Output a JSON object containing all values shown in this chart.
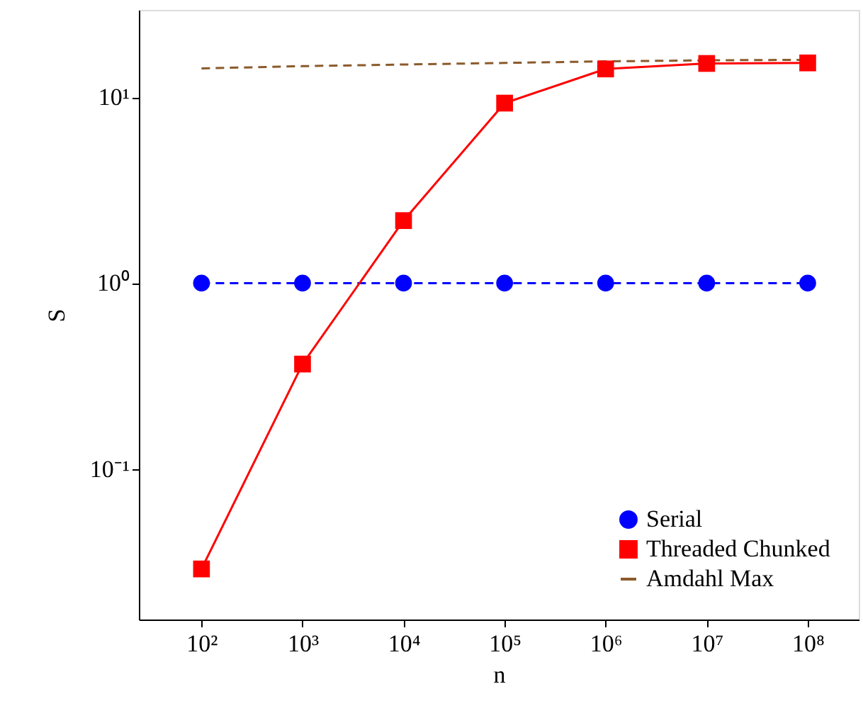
{
  "chart_data": {
    "type": "line",
    "xlabel": "n",
    "ylabel": "S",
    "log": "xy",
    "grid": false,
    "legend": "bottom right",
    "x": [
      100,
      1000,
      10000,
      100000,
      1000000,
      10000000,
      100000000
    ],
    "xlim": [
      24,
      320000000
    ],
    "ylim": [
      0.0155,
      29.5
    ],
    "xticks": [
      {
        "value": 100,
        "label": "10²"
      },
      {
        "value": 1000,
        "label": "10³"
      },
      {
        "value": 10000,
        "label": "10⁴"
      },
      {
        "value": 100000,
        "label": "10⁵"
      },
      {
        "value": 1000000,
        "label": "10⁶"
      },
      {
        "value": 10000000,
        "label": "10⁷"
      },
      {
        "value": 100000000,
        "label": "10⁸"
      }
    ],
    "yticks": [
      {
        "value": 0.1,
        "label": "10⁻¹"
      },
      {
        "value": 1,
        "label": "10⁰"
      },
      {
        "value": 10,
        "label": "10¹"
      }
    ],
    "series": [
      {
        "name": "Serial",
        "color": "#0000ff",
        "marker": "circle",
        "line_style": "dashed",
        "values": [
          1,
          1,
          1,
          1,
          1,
          1,
          1
        ]
      },
      {
        "name": "Threaded Chunked",
        "color": "#ff0000",
        "marker": "square",
        "line_style": "solid",
        "values": [
          0.029,
          0.367,
          2.17,
          9.3,
          14.2,
          15.2,
          15.3
        ]
      },
      {
        "name": "Amdahl Max",
        "color": "#8b5a2b",
        "marker": "none",
        "line_style": "dashed",
        "values": [
          14.3,
          14.7,
          15.0,
          15.3,
          15.6,
          15.8,
          15.9
        ]
      }
    ]
  }
}
